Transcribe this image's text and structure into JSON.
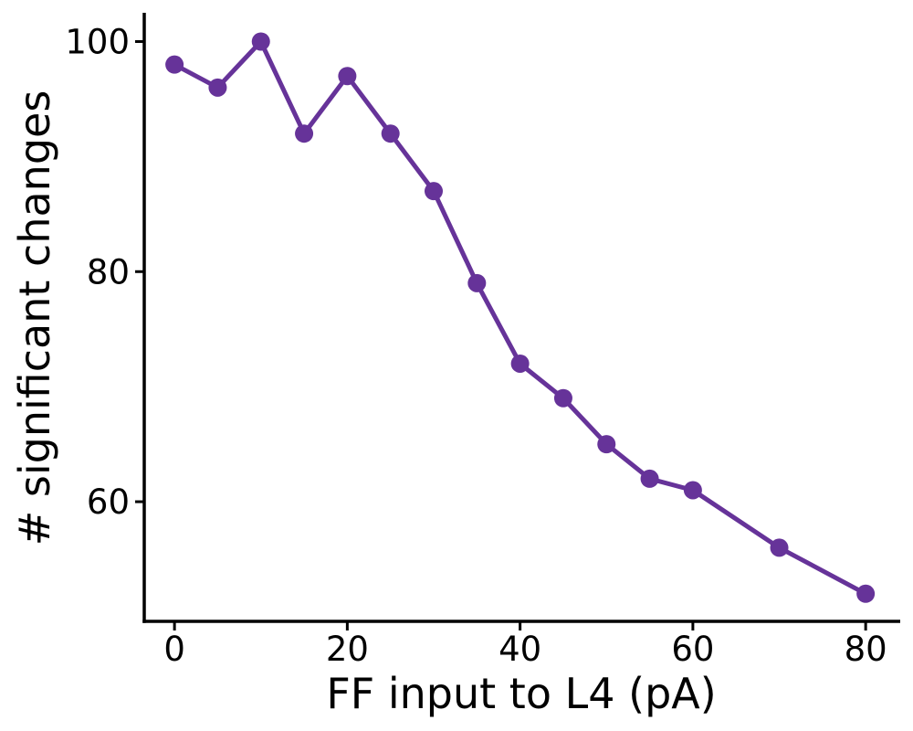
{
  "chart_data": {
    "type": "line",
    "title": "",
    "xlabel": "FF input to L4 (pA)",
    "ylabel": "# significant changes",
    "x": [
      0,
      5,
      10,
      15,
      20,
      25,
      30,
      35,
      40,
      45,
      50,
      55,
      60,
      70,
      80
    ],
    "series": [
      {
        "values": [
          98,
          96,
          100,
          92,
          97,
          92,
          87,
          79,
          72,
          69,
          65,
          62,
          61,
          56,
          52
        ],
        "color": "#663399",
        "marker": "circle"
      }
    ],
    "xlim": [
      -3.5,
      84
    ],
    "ylim": [
      49.6,
      102.5
    ],
    "xticks": [
      0,
      20,
      40,
      60,
      80
    ],
    "xtick_labels": [
      "0",
      "20",
      "40",
      "60",
      "80"
    ],
    "yticks": [
      60,
      80,
      100
    ],
    "ytick_labels": [
      "60",
      "80",
      "100"
    ],
    "grid": false,
    "legend": "none"
  }
}
